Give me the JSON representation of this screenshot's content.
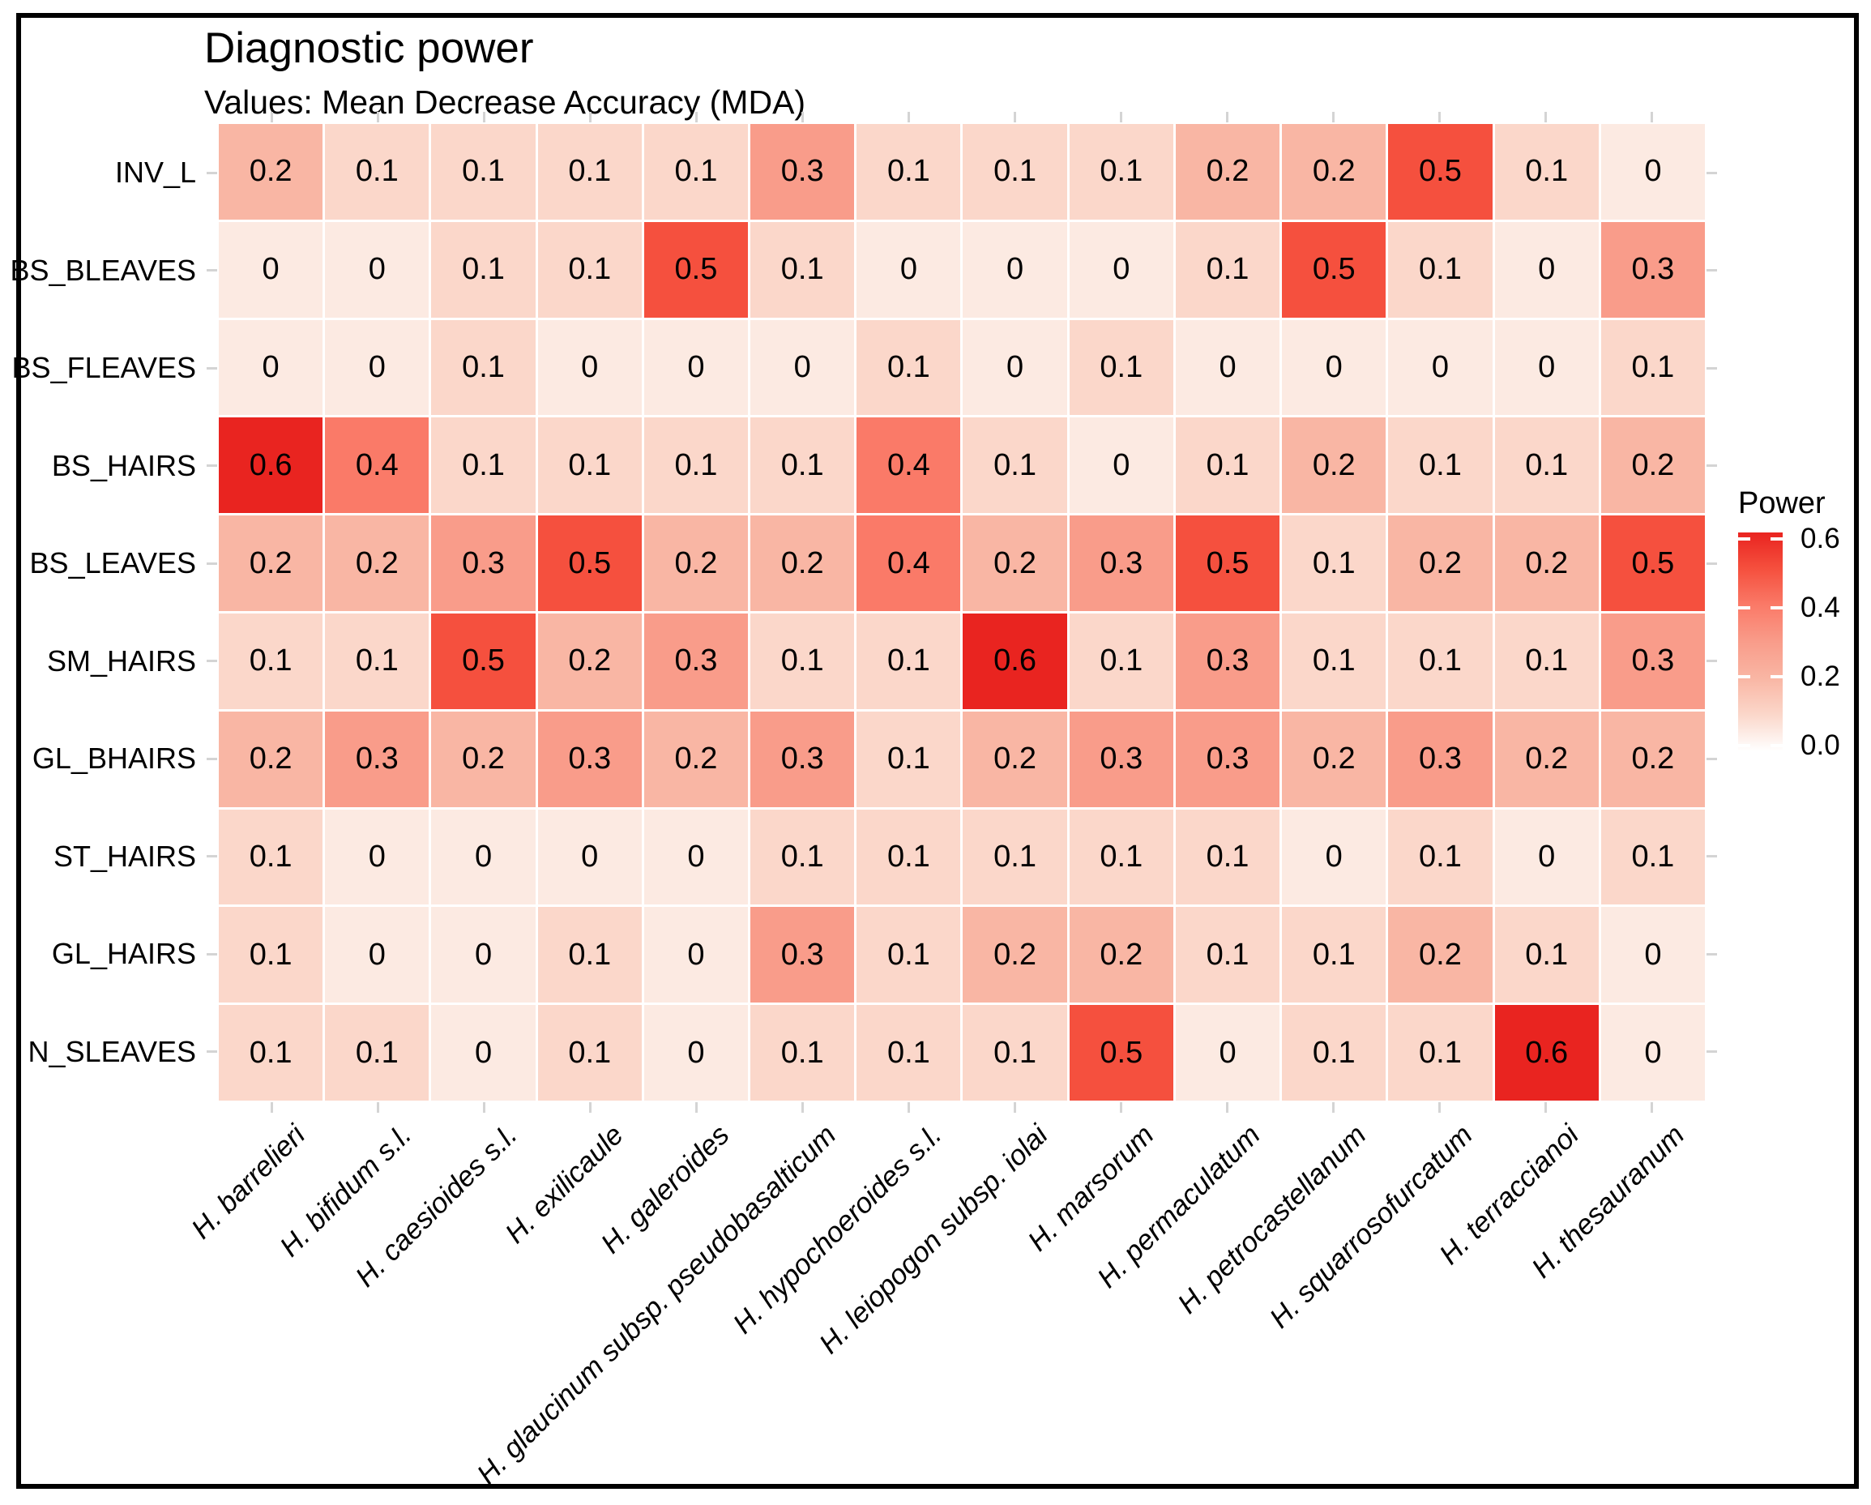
{
  "title": "Diagnostic power",
  "subtitle": "Values: Mean Decrease Accuracy (MDA)",
  "legend": {
    "title": "Power",
    "tick_labels": [
      "0.6",
      "0.4",
      "0.2",
      "0.0"
    ]
  },
  "colors": {
    "frame": "#000000",
    "axis_tick": "#d4d4d4",
    "scale_low": "#FFFFFF",
    "scale_high": "#E92420",
    "value_anchors": {
      "0.0": "#FCEAE2",
      "0.1": "#FBD7CA",
      "0.2": "#F9B6A4",
      "0.3": "#F99C8A",
      "0.4": "#FA7A68",
      "0.5": "#F5503E",
      "0.6": "#E92420"
    }
  },
  "chart_data": {
    "type": "heatmap",
    "title": "Diagnostic power",
    "subtitle": "Values: Mean Decrease Accuracy (MDA)",
    "legend_title": "Power",
    "legend_position": "right",
    "scale_range": [
      0.0,
      0.6
    ],
    "scale_ticks": [
      0.0,
      0.2,
      0.4,
      0.6
    ],
    "grid": false,
    "rows": [
      "INV_L",
      "BS_BLEAVES",
      "BS_FLEAVES",
      "BS_HAIRS",
      "BS_LEAVES",
      "SM_HAIRS",
      "GL_BHAIRS",
      "ST_HAIRS",
      "GL_HAIRS",
      "N_SLEAVES"
    ],
    "columns": [
      "H. barrelieri",
      "H. bifidum s.l.",
      "H. caesioides s.l.",
      "H. exilicaule",
      "H. galeroides",
      "H. glaucinum subsp. pseudobasalticum",
      "H. hypochoeroides s.l.",
      "H. leiopogon subsp. iolai",
      "H. marsorum",
      "H. permaculatum",
      "H. petrocastellanum",
      "H. squarrosofurcatum",
      "H. terraccianoi",
      "H. thesauranum"
    ],
    "values": [
      [
        0.2,
        0.1,
        0.1,
        0.1,
        0.1,
        0.3,
        0.1,
        0.1,
        0.1,
        0.2,
        0.2,
        0.5,
        0.1,
        0
      ],
      [
        0,
        0,
        0.1,
        0.1,
        0.5,
        0.1,
        0,
        0,
        0,
        0.1,
        0.5,
        0.1,
        0,
        0.3
      ],
      [
        0,
        0,
        0.1,
        0,
        0,
        0,
        0.1,
        0,
        0.1,
        0,
        0,
        0,
        0,
        0.1
      ],
      [
        0.6,
        0.4,
        0.1,
        0.1,
        0.1,
        0.1,
        0.4,
        0.1,
        0,
        0.1,
        0.2,
        0.1,
        0.1,
        0.2
      ],
      [
        0.2,
        0.2,
        0.3,
        0.5,
        0.2,
        0.2,
        0.4,
        0.2,
        0.3,
        0.5,
        0.1,
        0.2,
        0.2,
        0.5
      ],
      [
        0.1,
        0.1,
        0.5,
        0.2,
        0.3,
        0.1,
        0.1,
        0.6,
        0.1,
        0.3,
        0.1,
        0.1,
        0.1,
        0.3
      ],
      [
        0.2,
        0.3,
        0.2,
        0.3,
        0.2,
        0.3,
        0.1,
        0.2,
        0.3,
        0.3,
        0.2,
        0.3,
        0.2,
        0.2
      ],
      [
        0.1,
        0,
        0,
        0,
        0,
        0.1,
        0.1,
        0.1,
        0.1,
        0.1,
        0,
        0.1,
        0,
        0.1
      ],
      [
        0.1,
        0,
        0,
        0.1,
        0,
        0.3,
        0.1,
        0.2,
        0.2,
        0.1,
        0.1,
        0.2,
        0.1,
        0
      ],
      [
        0.1,
        0.1,
        0,
        0.1,
        0,
        0.1,
        0.1,
        0.1,
        0.5,
        0,
        0.1,
        0.1,
        0.6,
        0
      ]
    ]
  }
}
